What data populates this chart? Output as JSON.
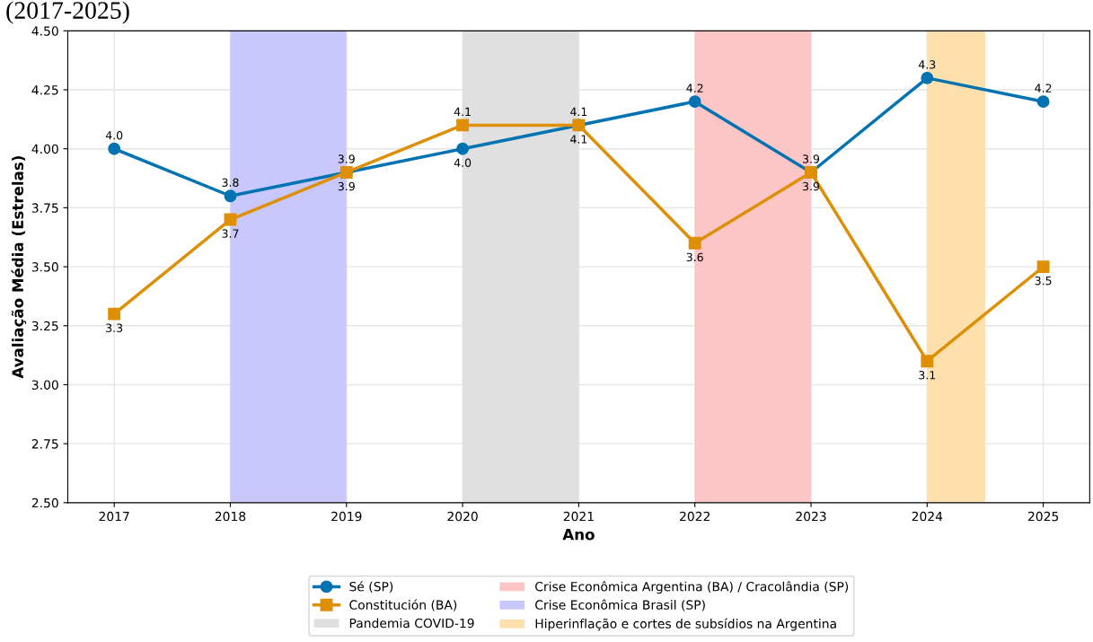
{
  "chart_data": {
    "type": "line",
    "title": "(2017-2025)",
    "xlabel": "Ano",
    "ylabel": "Avaliação Média (Estrelas)",
    "x": [
      2017,
      2018,
      2019,
      2020,
      2021,
      2022,
      2023,
      2024,
      2025
    ],
    "series": [
      {
        "name": "Sé (SP)",
        "color": "#0173b2",
        "marker": "circle",
        "values": [
          4.0,
          3.8,
          3.9,
          4.0,
          4.1,
          4.2,
          3.9,
          4.3,
          4.2
        ],
        "value_labels": [
          "4.0",
          "3.8",
          "3.9",
          "4.0",
          "4.1",
          "4.2",
          "3.9",
          "4.3",
          "4.2"
        ]
      },
      {
        "name": "Constitución (BA)",
        "color": "#de8f05",
        "marker": "square",
        "values": [
          3.3,
          3.7,
          3.9,
          4.1,
          4.1,
          3.6,
          3.9,
          3.1,
          3.5
        ],
        "value_labels": [
          "3.3",
          "3.7",
          "3.9",
          "4.1",
          "4.1",
          "3.6",
          "3.9",
          "3.1",
          "3.5"
        ]
      }
    ],
    "bands": [
      {
        "axis": "x",
        "from": 2020,
        "to": 2021,
        "label": "Pandemia COVID-19",
        "color": "#e0e0e0"
      },
      {
        "axis": "x",
        "from": 2022,
        "to": 2023,
        "label": "Crise Econômica Argentina (BA) / Cracolândia (SP)",
        "color": "#fdc6c6"
      },
      {
        "axis": "x",
        "from": 2018,
        "to": 2019,
        "label": "Crise Econômica Brasil (SP)",
        "color": "#c8c8fc"
      },
      {
        "axis": "x",
        "from": 2024,
        "to": 2024.5,
        "label": "Hiperinflação e cortes de subsídios na Argentina",
        "color": "#fde0ab"
      }
    ],
    "xlim": [
      2016.6,
      2025.4
    ],
    "xticks": [
      2017,
      2018,
      2019,
      2020,
      2021,
      2022,
      2023,
      2024,
      2025
    ],
    "ylim": [
      2.5,
      4.5
    ],
    "yticks": [
      {
        "value": 2.5,
        "label": "2.50"
      },
      {
        "value": 2.75,
        "label": "2.75"
      },
      {
        "value": 3.0,
        "label": "3.00"
      },
      {
        "value": 3.25,
        "label": "3.25"
      },
      {
        "value": 3.5,
        "label": "3.50"
      },
      {
        "value": 3.75,
        "label": "3.75"
      },
      {
        "value": 4.0,
        "label": "4.00"
      },
      {
        "value": 4.25,
        "label": "4.25"
      },
      {
        "value": 4.5,
        "label": "4.50"
      }
    ],
    "grid": true,
    "legend": "bottom",
    "line_style": "solid"
  }
}
